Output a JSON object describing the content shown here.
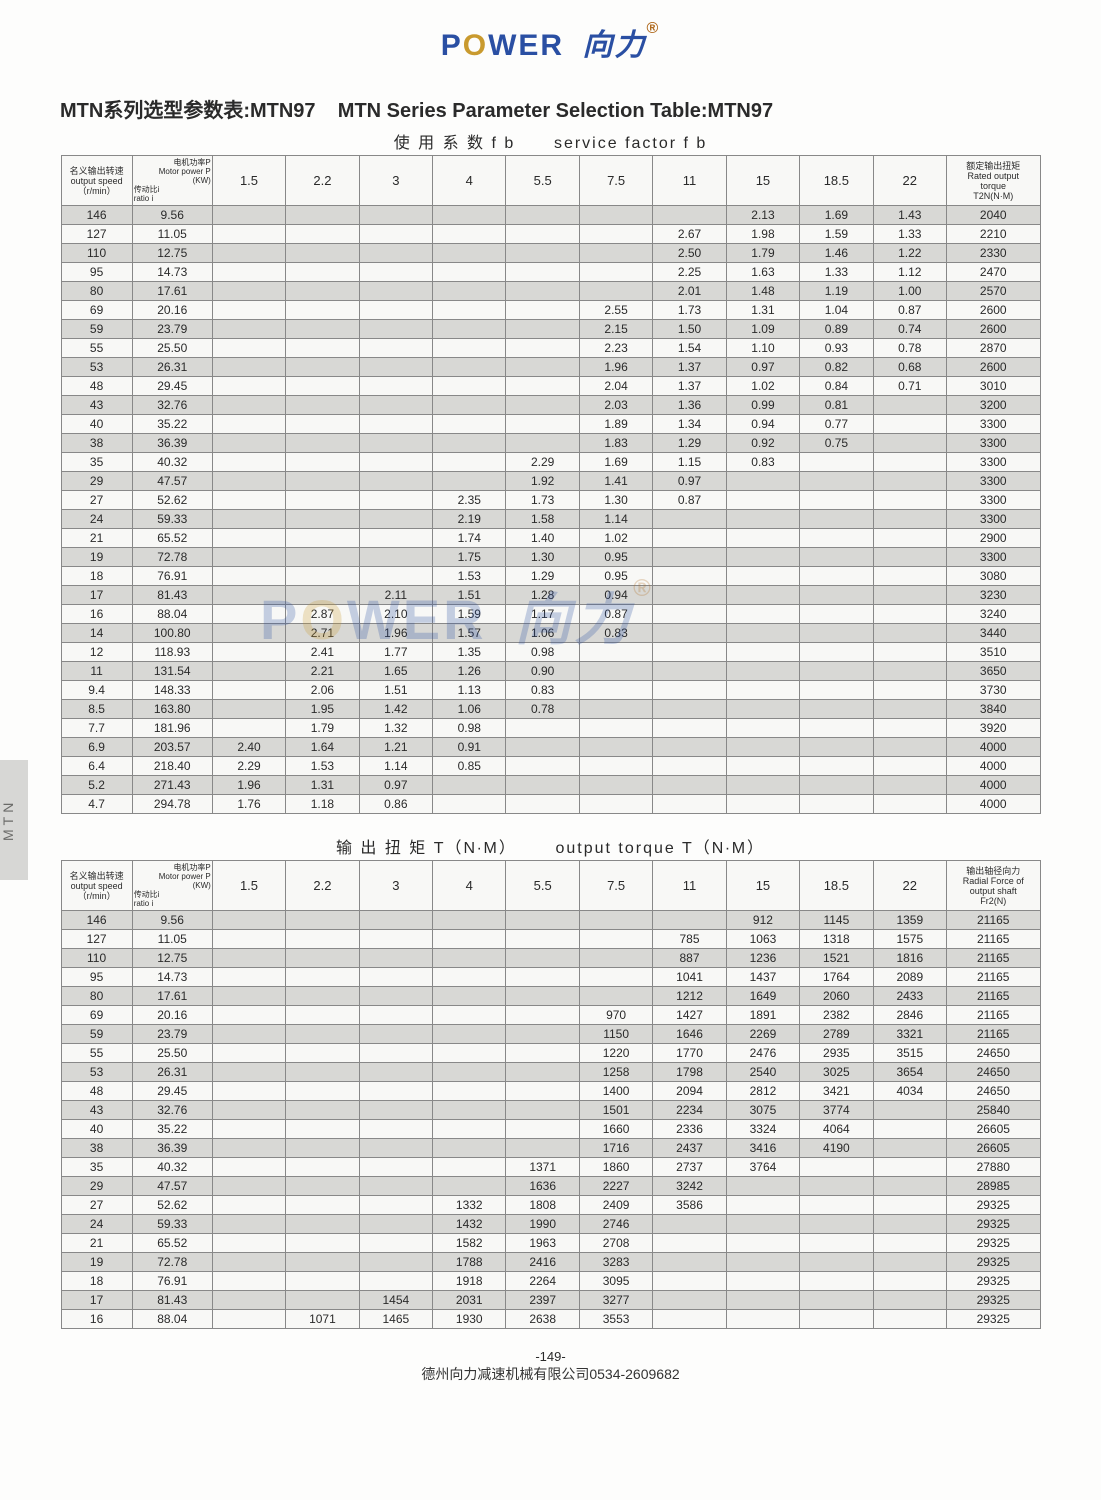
{
  "logo": {
    "text1": "P",
    "gear": "O",
    "text2": "WER",
    "cn": "向力",
    "reg": "®"
  },
  "title_cn": "MTN系列选型参数表:MTN97",
  "title_en": "MTN Series Parameter Selection Table:MTN97",
  "sub1_cn": "使 用 系 数 f b",
  "sub1_en": "service   factor   f b",
  "sub2_cn": "输 出 扭 矩  T（N∙M）",
  "sub2_en": "output torque T（N∙M）",
  "head": {
    "speed": "名义输出转速\noutput speed\n（r/min）",
    "ratio": "传动比i\nratio i",
    "power": "电机功率P\nMotor power P\n(KW)",
    "cols": [
      "1.5",
      "2.2",
      "3",
      "4",
      "5.5",
      "7.5",
      "11",
      "15",
      "18.5",
      "22"
    ],
    "t1last": "额定输出扭矩\nRated output\ntorque\nT2N(N·M)",
    "t2last": "输出轴径向力\nRadial Force of\noutput shaft\nFr2(N)"
  },
  "table1": [
    [
      "146",
      "9.56",
      "",
      "",
      "",
      "",
      "",
      "",
      "",
      "2.13",
      "1.69",
      "1.43",
      "2040"
    ],
    [
      "127",
      "11.05",
      "",
      "",
      "",
      "",
      "",
      "",
      "2.67",
      "1.98",
      "1.59",
      "1.33",
      "2210"
    ],
    [
      "110",
      "12.75",
      "",
      "",
      "",
      "",
      "",
      "",
      "2.50",
      "1.79",
      "1.46",
      "1.22",
      "2330"
    ],
    [
      "95",
      "14.73",
      "",
      "",
      "",
      "",
      "",
      "",
      "2.25",
      "1.63",
      "1.33",
      "1.12",
      "2470"
    ],
    [
      "80",
      "17.61",
      "",
      "",
      "",
      "",
      "",
      "",
      "2.01",
      "1.48",
      "1.19",
      "1.00",
      "2570"
    ],
    [
      "69",
      "20.16",
      "",
      "",
      "",
      "",
      "",
      "2.55",
      "1.73",
      "1.31",
      "1.04",
      "0.87",
      "2600"
    ],
    [
      "59",
      "23.79",
      "",
      "",
      "",
      "",
      "",
      "2.15",
      "1.50",
      "1.09",
      "0.89",
      "0.74",
      "2600"
    ],
    [
      "55",
      "25.50",
      "",
      "",
      "",
      "",
      "",
      "2.23",
      "1.54",
      "1.10",
      "0.93",
      "0.78",
      "2870"
    ],
    [
      "53",
      "26.31",
      "",
      "",
      "",
      "",
      "",
      "1.96",
      "1.37",
      "0.97",
      "0.82",
      "0.68",
      "2600"
    ],
    [
      "48",
      "29.45",
      "",
      "",
      "",
      "",
      "",
      "2.04",
      "1.37",
      "1.02",
      "0.84",
      "0.71",
      "3010"
    ],
    [
      "43",
      "32.76",
      "",
      "",
      "",
      "",
      "",
      "2.03",
      "1.36",
      "0.99",
      "0.81",
      "",
      "3200"
    ],
    [
      "40",
      "35.22",
      "",
      "",
      "",
      "",
      "",
      "1.89",
      "1.34",
      "0.94",
      "0.77",
      "",
      "3300"
    ],
    [
      "38",
      "36.39",
      "",
      "",
      "",
      "",
      "",
      "1.83",
      "1.29",
      "0.92",
      "0.75",
      "",
      "3300"
    ],
    [
      "35",
      "40.32",
      "",
      "",
      "",
      "",
      "2.29",
      "1.69",
      "1.15",
      "0.83",
      "",
      "",
      "3300"
    ],
    [
      "29",
      "47.57",
      "",
      "",
      "",
      "",
      "1.92",
      "1.41",
      "0.97",
      "",
      "",
      "",
      "3300"
    ],
    [
      "27",
      "52.62",
      "",
      "",
      "",
      "2.35",
      "1.73",
      "1.30",
      "0.87",
      "",
      "",
      "",
      "3300"
    ],
    [
      "24",
      "59.33",
      "",
      "",
      "",
      "2.19",
      "1.58",
      "1.14",
      "",
      "",
      "",
      "",
      "3300"
    ],
    [
      "21",
      "65.52",
      "",
      "",
      "",
      "1.74",
      "1.40",
      "1.02",
      "",
      "",
      "",
      "",
      "2900"
    ],
    [
      "19",
      "72.78",
      "",
      "",
      "",
      "1.75",
      "1.30",
      "0.95",
      "",
      "",
      "",
      "",
      "3300"
    ],
    [
      "18",
      "76.91",
      "",
      "",
      "",
      "1.53",
      "1.29",
      "0.95",
      "",
      "",
      "",
      "",
      "3080"
    ],
    [
      "17",
      "81.43",
      "",
      "",
      "2.11",
      "1.51",
      "1.28",
      "0.94",
      "",
      "",
      "",
      "",
      "3230"
    ],
    [
      "16",
      "88.04",
      "",
      "2.87",
      "2.10",
      "1.59",
      "1.17",
      "0.87",
      "",
      "",
      "",
      "",
      "3240"
    ],
    [
      "14",
      "100.80",
      "",
      "2.71",
      "1.96",
      "1.57",
      "1.06",
      "0.83",
      "",
      "",
      "",
      "",
      "3440"
    ],
    [
      "12",
      "118.93",
      "",
      "2.41",
      "1.77",
      "1.35",
      "0.98",
      "",
      "",
      "",
      "",
      "",
      "3510"
    ],
    [
      "11",
      "131.54",
      "",
      "2.21",
      "1.65",
      "1.26",
      "0.90",
      "",
      "",
      "",
      "",
      "",
      "3650"
    ],
    [
      "9.4",
      "148.33",
      "",
      "2.06",
      "1.51",
      "1.13",
      "0.83",
      "",
      "",
      "",
      "",
      "",
      "3730"
    ],
    [
      "8.5",
      "163.80",
      "",
      "1.95",
      "1.42",
      "1.06",
      "0.78",
      "",
      "",
      "",
      "",
      "",
      "3840"
    ],
    [
      "7.7",
      "181.96",
      "",
      "1.79",
      "1.32",
      "0.98",
      "",
      "",
      "",
      "",
      "",
      "",
      "3920"
    ],
    [
      "6.9",
      "203.57",
      "2.40",
      "1.64",
      "1.21",
      "0.91",
      "",
      "",
      "",
      "",
      "",
      "",
      "4000"
    ],
    [
      "6.4",
      "218.40",
      "2.29",
      "1.53",
      "1.14",
      "0.85",
      "",
      "",
      "",
      "",
      "",
      "",
      "4000"
    ],
    [
      "5.2",
      "271.43",
      "1.96",
      "1.31",
      "0.97",
      "",
      "",
      "",
      "",
      "",
      "",
      "",
      "4000"
    ],
    [
      "4.7",
      "294.78",
      "1.76",
      "1.18",
      "0.86",
      "",
      "",
      "",
      "",
      "",
      "",
      "",
      "4000"
    ]
  ],
  "table2": [
    [
      "146",
      "9.56",
      "",
      "",
      "",
      "",
      "",
      "",
      "",
      "912",
      "1145",
      "1359",
      "21165"
    ],
    [
      "127",
      "11.05",
      "",
      "",
      "",
      "",
      "",
      "",
      "785",
      "1063",
      "1318",
      "1575",
      "21165"
    ],
    [
      "110",
      "12.75",
      "",
      "",
      "",
      "",
      "",
      "",
      "887",
      "1236",
      "1521",
      "1816",
      "21165"
    ],
    [
      "95",
      "14.73",
      "",
      "",
      "",
      "",
      "",
      "",
      "1041",
      "1437",
      "1764",
      "2089",
      "21165"
    ],
    [
      "80",
      "17.61",
      "",
      "",
      "",
      "",
      "",
      "",
      "1212",
      "1649",
      "2060",
      "2433",
      "21165"
    ],
    [
      "69",
      "20.16",
      "",
      "",
      "",
      "",
      "",
      "970",
      "1427",
      "1891",
      "2382",
      "2846",
      "21165"
    ],
    [
      "59",
      "23.79",
      "",
      "",
      "",
      "",
      "",
      "1150",
      "1646",
      "2269",
      "2789",
      "3321",
      "21165"
    ],
    [
      "55",
      "25.50",
      "",
      "",
      "",
      "",
      "",
      "1220",
      "1770",
      "2476",
      "2935",
      "3515",
      "24650"
    ],
    [
      "53",
      "26.31",
      "",
      "",
      "",
      "",
      "",
      "1258",
      "1798",
      "2540",
      "3025",
      "3654",
      "24650"
    ],
    [
      "48",
      "29.45",
      "",
      "",
      "",
      "",
      "",
      "1400",
      "2094",
      "2812",
      "3421",
      "4034",
      "24650"
    ],
    [
      "43",
      "32.76",
      "",
      "",
      "",
      "",
      "",
      "1501",
      "2234",
      "3075",
      "3774",
      "",
      "25840"
    ],
    [
      "40",
      "35.22",
      "",
      "",
      "",
      "",
      "",
      "1660",
      "2336",
      "3324",
      "4064",
      "",
      "26605"
    ],
    [
      "38",
      "36.39",
      "",
      "",
      "",
      "",
      "",
      "1716",
      "2437",
      "3416",
      "4190",
      "",
      "26605"
    ],
    [
      "35",
      "40.32",
      "",
      "",
      "",
      "",
      "1371",
      "1860",
      "2737",
      "3764",
      "",
      "",
      "27880"
    ],
    [
      "29",
      "47.57",
      "",
      "",
      "",
      "",
      "1636",
      "2227",
      "3242",
      "",
      "",
      "",
      "28985"
    ],
    [
      "27",
      "52.62",
      "",
      "",
      "",
      "1332",
      "1808",
      "2409",
      "3586",
      "",
      "",
      "",
      "29325"
    ],
    [
      "24",
      "59.33",
      "",
      "",
      "",
      "1432",
      "1990",
      "2746",
      "",
      "",
      "",
      "",
      "29325"
    ],
    [
      "21",
      "65.52",
      "",
      "",
      "",
      "1582",
      "1963",
      "2708",
      "",
      "",
      "",
      "",
      "29325"
    ],
    [
      "19",
      "72.78",
      "",
      "",
      "",
      "1788",
      "2416",
      "3283",
      "",
      "",
      "",
      "",
      "29325"
    ],
    [
      "18",
      "76.91",
      "",
      "",
      "",
      "1918",
      "2264",
      "3095",
      "",
      "",
      "",
      "",
      "29325"
    ],
    [
      "17",
      "81.43",
      "",
      "",
      "1454",
      "2031",
      "2397",
      "3277",
      "",
      "",
      "",
      "",
      "29325"
    ],
    [
      "16",
      "88.04",
      "",
      "1071",
      "1465",
      "1930",
      "2638",
      "3553",
      "",
      "",
      "",
      "",
      "29325"
    ]
  ],
  "sideTab": "MTN",
  "pageNum": "-149-",
  "footer": "德州向力减速机械有限公司0534-2609682"
}
